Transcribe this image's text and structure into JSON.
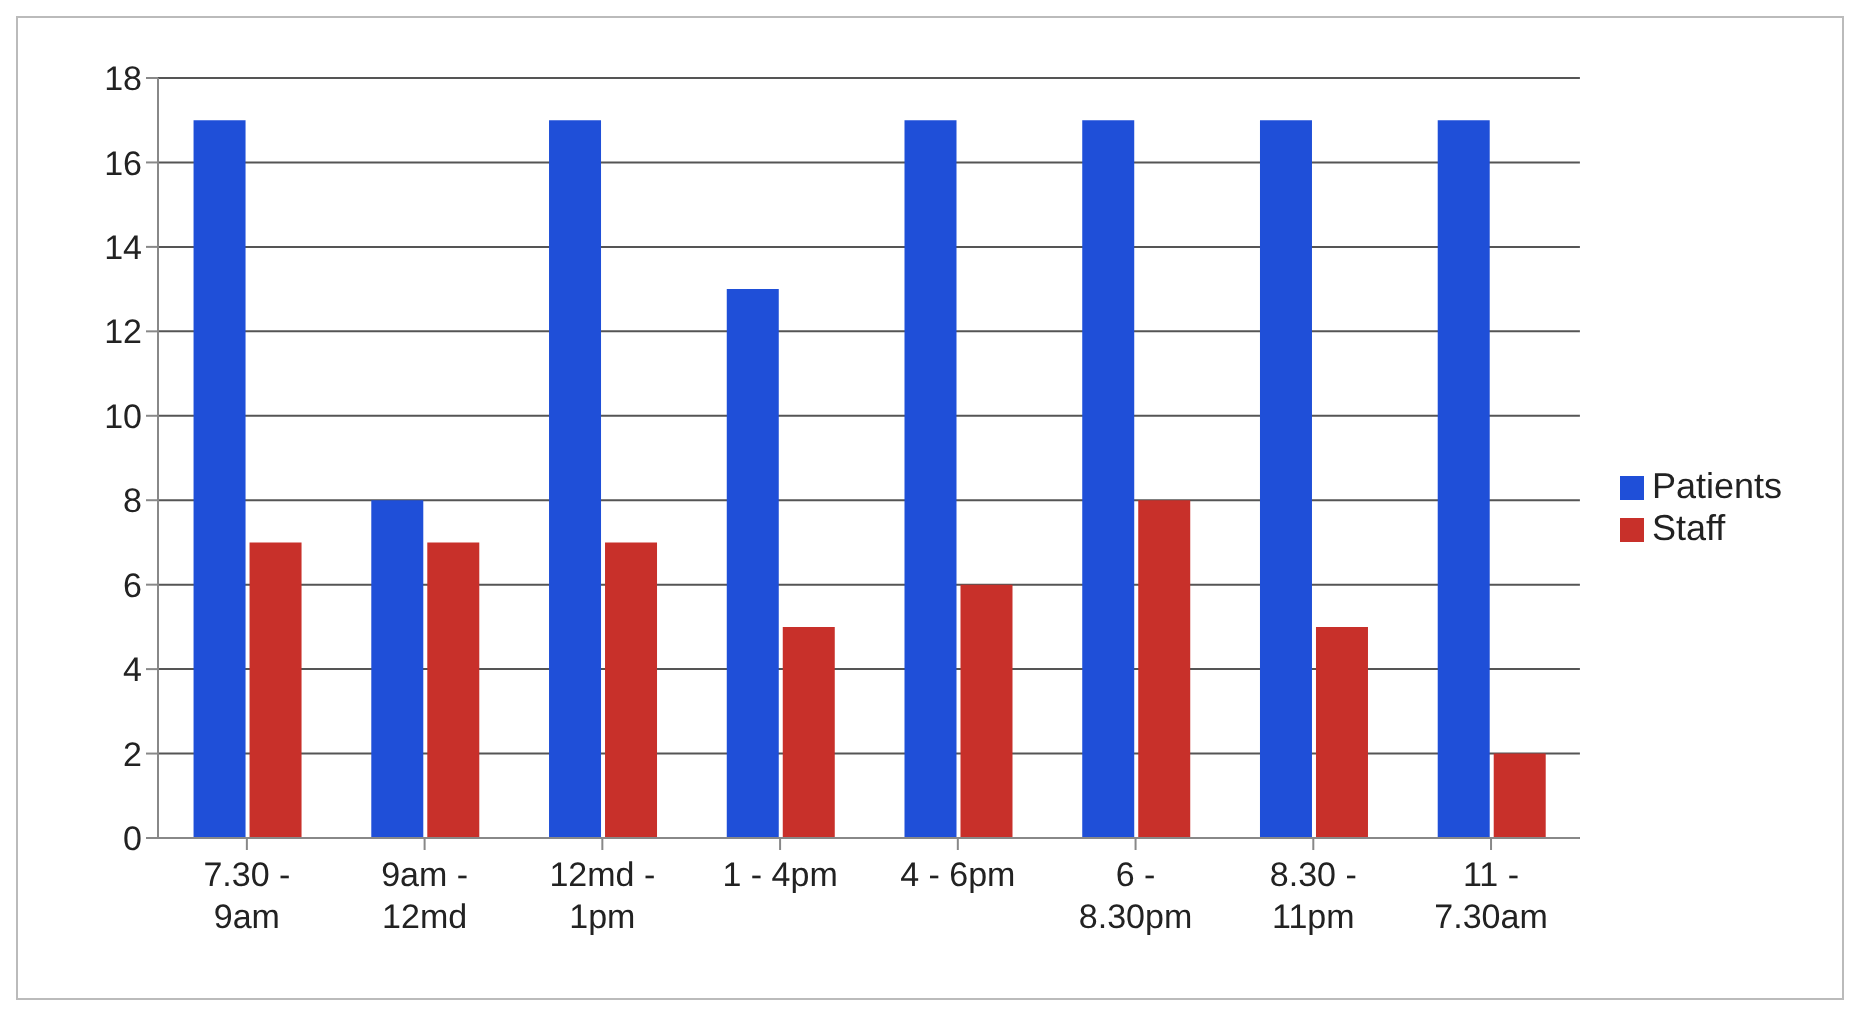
{
  "chart_data": {
    "type": "bar",
    "categories": [
      "7.30 - 9am",
      "9am - 12md",
      "12md - 1pm",
      "1 - 4pm",
      "4 - 6pm",
      "6 - 8.30pm",
      "8.30 - 11pm",
      "11 - 7.30am"
    ],
    "series": [
      {
        "name": "Patients",
        "color": "#1f4fd8",
        "values": [
          17,
          8,
          17,
          13,
          17,
          17,
          17,
          17
        ]
      },
      {
        "name": "Staff",
        "color": "#c8302a",
        "values": [
          7,
          7,
          7,
          5,
          6,
          8,
          5,
          2
        ]
      }
    ],
    "ylim": [
      0,
      18
    ],
    "yticks": [
      0,
      2,
      4,
      6,
      8,
      10,
      12,
      14,
      16,
      18
    ],
    "grid": "y",
    "legend": "right"
  }
}
